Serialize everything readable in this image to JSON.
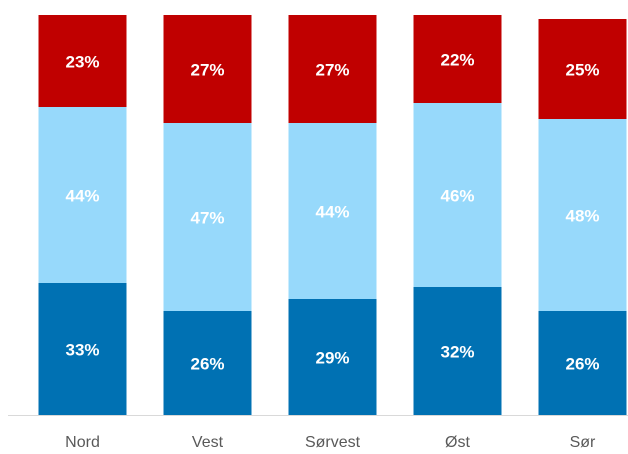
{
  "chart_data": {
    "type": "stacked_bar",
    "categories": [
      "Nord",
      "Vest",
      "Sørvest",
      "Øst",
      "Sør"
    ],
    "series": [
      {
        "color": "#0071b3",
        "values": [
          33,
          26,
          29,
          32,
          26
        ],
        "value_labels": [
          "33%",
          "26%",
          "29%",
          "32%",
          "26%"
        ]
      },
      {
        "color": "#97d9fb",
        "values": [
          44,
          47,
          44,
          46,
          48
        ],
        "value_labels": [
          "44%",
          "47%",
          "44%",
          "46%",
          "48%"
        ]
      },
      {
        "color": "#c00000",
        "values": [
          23,
          27,
          27,
          22,
          25
        ],
        "value_labels": [
          "23%",
          "27%",
          "27%",
          "22%",
          "25%"
        ]
      }
    ],
    "ylim": [
      0,
      100
    ]
  }
}
